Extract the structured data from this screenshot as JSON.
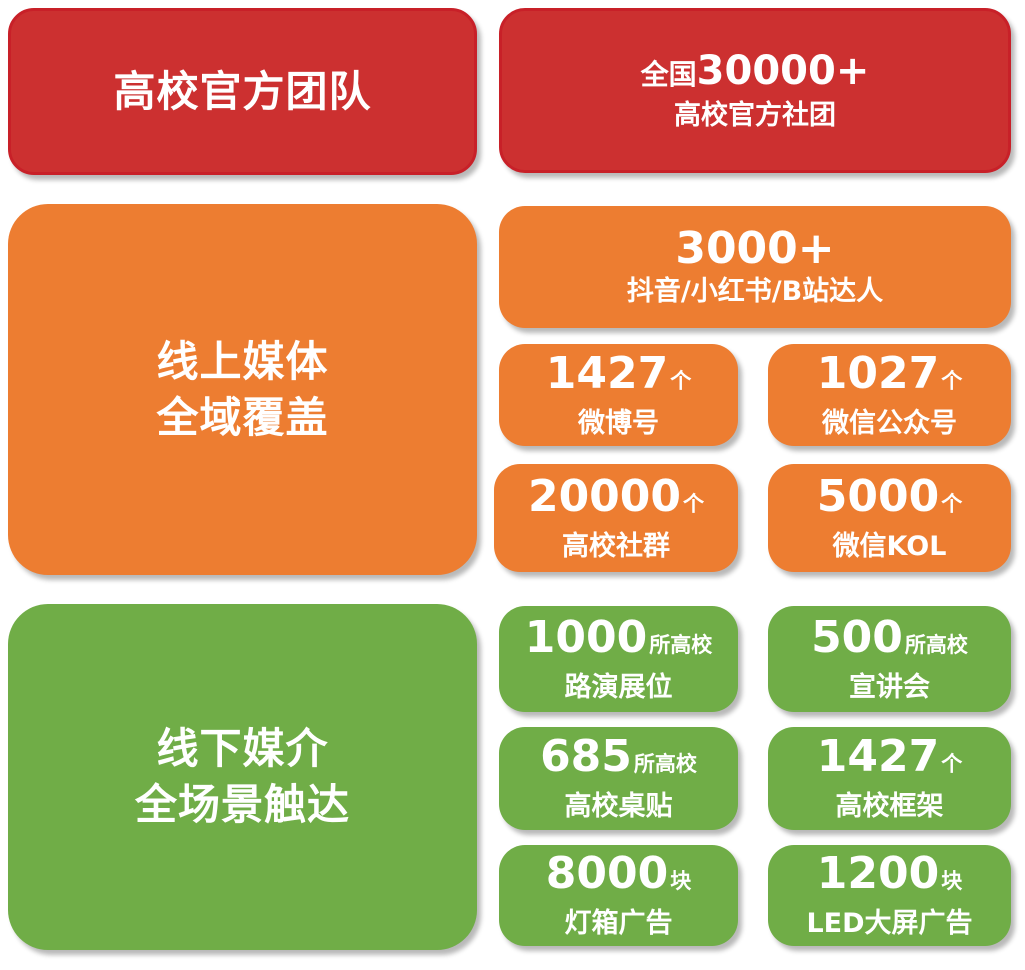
{
  "colors": {
    "red": "#CC3030",
    "orange": "#ED7D31",
    "green": "#70AD47"
  },
  "team": {
    "title": "高校官方团队",
    "stat": {
      "prefix": "全国",
      "value": "30000+",
      "label": "高校官方社团"
    }
  },
  "online": {
    "title_line1": "线上媒体",
    "title_line2": "全域覆盖",
    "top": {
      "value": "3000+",
      "label": "抖音/小红书/B站达人"
    },
    "items": [
      {
        "value": "1427",
        "unit": "个",
        "label": "微博号"
      },
      {
        "value": "1027",
        "unit": "个",
        "label": "微信公众号"
      },
      {
        "value": "20000",
        "unit": "个",
        "label": "高校社群"
      },
      {
        "value": "5000",
        "unit": "个",
        "label": "微信KOL"
      }
    ]
  },
  "offline": {
    "title_line1": "线下媒介",
    "title_line2": "全场景触达",
    "items": [
      {
        "value": "1000",
        "unit": "所高校",
        "label": "路演展位"
      },
      {
        "value": "500",
        "unit": "所高校",
        "label": "宣讲会"
      },
      {
        "value": "685",
        "unit": "所高校",
        "label": "高校桌贴"
      },
      {
        "value": "1427",
        "unit": "个",
        "label": "高校框架"
      },
      {
        "value": "8000",
        "unit": "块",
        "label": "灯箱广告"
      },
      {
        "value": "1200",
        "unit": "块",
        "label": "LED大屏广告"
      }
    ]
  }
}
